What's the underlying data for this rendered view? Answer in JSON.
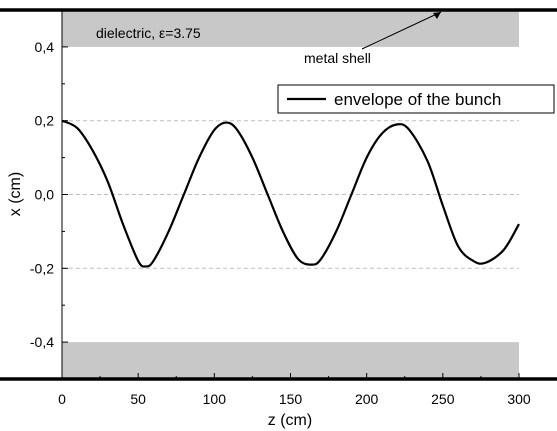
{
  "chart_data": {
    "type": "line",
    "title": "",
    "xlabel": "z (cm)",
    "ylabel": "x (cm)",
    "xlim": [
      0,
      300
    ],
    "ylim": [
      -0.5,
      0.5
    ],
    "x_ticks": [
      0,
      50,
      100,
      150,
      200,
      250,
      300
    ],
    "x_tick_labels": [
      "0",
      "50",
      "100",
      "150",
      "200",
      "250",
      "300"
    ],
    "y_ticks": [
      -0.4,
      -0.2,
      0.0,
      0.2,
      0.4
    ],
    "y_tick_labels": [
      "-0,4",
      "-0,2",
      "0,0",
      "0,2",
      "0,4"
    ],
    "grid": {
      "dashed_horizontal_at": [
        -0.2,
        0.0,
        0.2
      ]
    },
    "legend": {
      "position": "top-right",
      "entries": [
        "envelope of the bunch"
      ]
    },
    "regions": [
      {
        "label": "dielectric, ε=3.75",
        "x_range": [
          0,
          300
        ],
        "y_range": [
          0.4,
          0.5
        ],
        "color": "#c8c8c8"
      },
      {
        "label": "",
        "x_range": [
          0,
          300
        ],
        "y_range": [
          -0.5,
          -0.4
        ],
        "color": "#c8c8c8"
      }
    ],
    "metal_shell": {
      "label": "metal shell",
      "y_values": [
        0.5,
        -0.5
      ]
    },
    "series": [
      {
        "name": "envelope of the bunch",
        "color": "#000000",
        "x": [
          0,
          10,
          20,
          30,
          40,
          50,
          55,
          60,
          70,
          80,
          90,
          100,
          108,
          115,
          125,
          135,
          145,
          155,
          164,
          170,
          180,
          190,
          200,
          210,
          220,
          228,
          240,
          250,
          260,
          270,
          278,
          290,
          300
        ],
        "y": [
          0.2,
          0.18,
          0.12,
          0.035,
          -0.08,
          -0.18,
          -0.195,
          -0.18,
          -0.1,
          0.0,
          0.1,
          0.175,
          0.195,
          0.175,
          0.1,
          0.0,
          -0.1,
          -0.175,
          -0.19,
          -0.175,
          -0.1,
          0.0,
          0.1,
          0.165,
          0.19,
          0.175,
          0.09,
          -0.03,
          -0.14,
          -0.18,
          -0.185,
          -0.15,
          -0.08
        ]
      }
    ]
  }
}
